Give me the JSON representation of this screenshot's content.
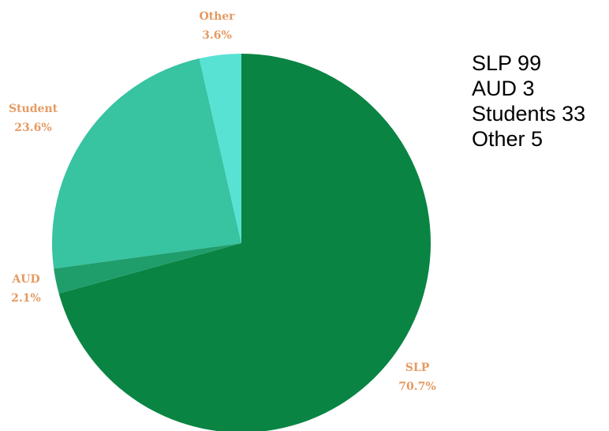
{
  "chart_data": {
    "type": "pie",
    "title": "",
    "slices": [
      {
        "name": "SLP",
        "value": 99,
        "percent_label": "70.7%",
        "color": "#0a8443"
      },
      {
        "name": "AUD",
        "value": 3,
        "percent_label": "2.1%",
        "color": "#1f9e6c"
      },
      {
        "name": "Student",
        "value": 33,
        "percent_label": "23.6%",
        "color": "#38c3a1"
      },
      {
        "name": "Other",
        "value": 5,
        "percent_label": "3.6%",
        "color": "#58e2d4"
      }
    ],
    "start_angle_deg": 0,
    "direction": "clockwise",
    "label_color": "#e59a62"
  },
  "notes": {
    "lines": [
      "SLP 99",
      "AUD 3",
      "Students 33",
      "Other 5"
    ]
  }
}
